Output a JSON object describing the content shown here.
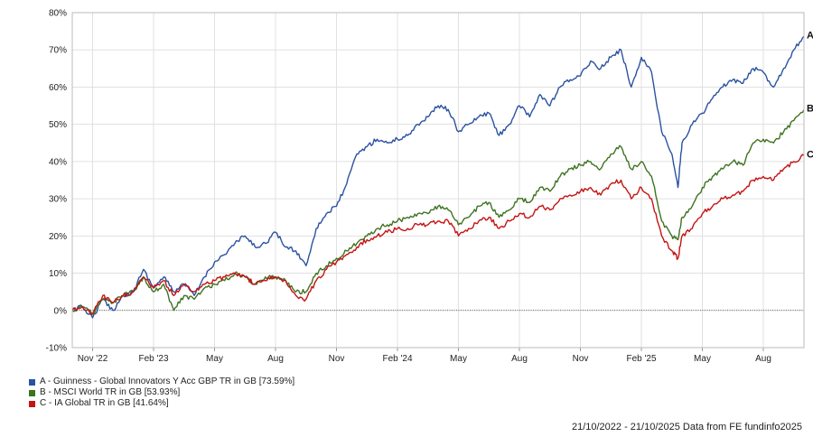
{
  "chart_data": {
    "type": "line",
    "title": "",
    "xlabel": "",
    "ylabel": "",
    "ylim": [
      -10,
      80
    ],
    "y_ticks": [
      80,
      70,
      60,
      50,
      40,
      30,
      20,
      10,
      0,
      -10
    ],
    "y_tick_labels": [
      "80%",
      "70%",
      "60%",
      "50%",
      "40%",
      "30%",
      "20%",
      "10%",
      "0%",
      "-10%"
    ],
    "x_ticks": [
      {
        "label": "Nov '22",
        "month": 1
      },
      {
        "label": "Feb '23",
        "month": 4
      },
      {
        "label": "May",
        "month": 7
      },
      {
        "label": "Aug",
        "month": 10
      },
      {
        "label": "Nov",
        "month": 13
      },
      {
        "label": "Feb '24",
        "month": 16
      },
      {
        "label": "May",
        "month": 19
      },
      {
        "label": "Aug",
        "month": 22
      },
      {
        "label": "Nov",
        "month": 25
      },
      {
        "label": "Feb '25",
        "month": 28
      },
      {
        "label": "May",
        "month": 31
      },
      {
        "label": "Aug",
        "month": 34
      }
    ],
    "grid": true,
    "zero_line": true,
    "series": [
      {
        "id": "A",
        "name": "A - Guinness - Global Innovators Y Acc GBP TR in GB [73.59%]",
        "color": "#2b52a0",
        "x": [
          0,
          0.5,
          1,
          1.5,
          2,
          2.5,
          3,
          3.5,
          4,
          4.5,
          5,
          5.5,
          6,
          6.5,
          7,
          7.5,
          8,
          8.5,
          9,
          9.5,
          10,
          10.5,
          11,
          11.5,
          12,
          12.5,
          13,
          13.5,
          14,
          14.5,
          15,
          15.5,
          16,
          16.5,
          17,
          17.5,
          18,
          18.5,
          19,
          19.5,
          20,
          20.5,
          21,
          21.5,
          22,
          22.5,
          23,
          23.5,
          24,
          24.5,
          25,
          25.5,
          26,
          26.5,
          27,
          27.5,
          28,
          28.5,
          29,
          29.5,
          29.8,
          30,
          30.5,
          31,
          31.5,
          32,
          32.5,
          33,
          33.5,
          34,
          34.5,
          35,
          35.5,
          36
        ],
        "y": [
          0,
          1,
          -2,
          3,
          0,
          4,
          5,
          11,
          6,
          9,
          5,
          7,
          4,
          9,
          13,
          15,
          18,
          20,
          17,
          18,
          21,
          17,
          16,
          12,
          22,
          26,
          28,
          34,
          42,
          44,
          46,
          45,
          46,
          47,
          50,
          52,
          55,
          54,
          48,
          50,
          52,
          53,
          47,
          50,
          55,
          52,
          58,
          55,
          60,
          62,
          63,
          67,
          65,
          68,
          70,
          60,
          68,
          64,
          48,
          42,
          33,
          45,
          50,
          53,
          57,
          60,
          62,
          61,
          65,
          64,
          60,
          65,
          70,
          73.6
        ]
      },
      {
        "id": "B",
        "name": "B - MSCI World TR in GB [53.93%]",
        "color": "#3e7321",
        "x": [
          0,
          0.5,
          1,
          1.5,
          2,
          2.5,
          3,
          3.5,
          4,
          4.5,
          5,
          5.5,
          6,
          6.5,
          7,
          7.5,
          8,
          8.5,
          9,
          9.5,
          10,
          10.5,
          11,
          11.5,
          12,
          12.5,
          13,
          13.5,
          14,
          14.5,
          15,
          15.5,
          16,
          16.5,
          17,
          17.5,
          18,
          18.5,
          19,
          19.5,
          20,
          20.5,
          21,
          21.5,
          22,
          22.5,
          23,
          23.5,
          24,
          24.5,
          25,
          25.5,
          26,
          26.5,
          27,
          27.5,
          28,
          28.5,
          29,
          29.5,
          29.8,
          30,
          30.5,
          31,
          31.5,
          32,
          32.5,
          33,
          33.5,
          34,
          34.5,
          35,
          35.5,
          36
        ],
        "y": [
          0,
          1,
          -1,
          3,
          2,
          4,
          5,
          9,
          5,
          7,
          0,
          4,
          3,
          6,
          7,
          8,
          10,
          9,
          7,
          9,
          9,
          8,
          5,
          5,
          10,
          12,
          14,
          16,
          18,
          20,
          22,
          23,
          24,
          25,
          26,
          26,
          28,
          27,
          23,
          25,
          28,
          29,
          25,
          27,
          30,
          29,
          33,
          32,
          36,
          38,
          39,
          40,
          38,
          42,
          44,
          38,
          40,
          36,
          24,
          20,
          19,
          25,
          28,
          33,
          36,
          38,
          40,
          39,
          45,
          46,
          45,
          48,
          51,
          53.9
        ]
      },
      {
        "id": "C",
        "name": "C - IA Global TR in GB [41.64%]",
        "color": "#c41414",
        "x": [
          0,
          0.5,
          1,
          1.5,
          2,
          2.5,
          3,
          3.5,
          4,
          4.5,
          5,
          5.5,
          6,
          6.5,
          7,
          7.5,
          8,
          8.5,
          9,
          9.5,
          10,
          10.5,
          11,
          11.5,
          12,
          12.5,
          13,
          13.5,
          14,
          14.5,
          15,
          15.5,
          16,
          16.5,
          17,
          17.5,
          18,
          18.5,
          19,
          19.5,
          20,
          20.5,
          21,
          21.5,
          22,
          22.5,
          23,
          23.5,
          24,
          24.5,
          25,
          25.5,
          26,
          26.5,
          27,
          27.5,
          28,
          28.5,
          29,
          29.5,
          29.8,
          30,
          30.5,
          31,
          31.5,
          32,
          32.5,
          33,
          33.5,
          34,
          34.5,
          35,
          35.5,
          36
        ],
        "y": [
          0,
          1,
          -1,
          4,
          2,
          4,
          5,
          9,
          6,
          8,
          4,
          7,
          5,
          7,
          8,
          9,
          10,
          9,
          7,
          8,
          9,
          8,
          4,
          3,
          8,
          11,
          13,
          15,
          17,
          19,
          20,
          21,
          22,
          22,
          23,
          23,
          24,
          24,
          20,
          22,
          24,
          25,
          22,
          24,
          26,
          25,
          28,
          27,
          30,
          31,
          32,
          33,
          31,
          34,
          35,
          30,
          33,
          30,
          20,
          16,
          14,
          20,
          22,
          26,
          28,
          30,
          31,
          32,
          35,
          36,
          35,
          38,
          40,
          41.6
        ]
      }
    ],
    "end_labels": [
      "A",
      "B",
      "C"
    ],
    "date_range": "21/10/2022 - 21/10/2025",
    "source": "Data from FE fundinfo2025"
  }
}
